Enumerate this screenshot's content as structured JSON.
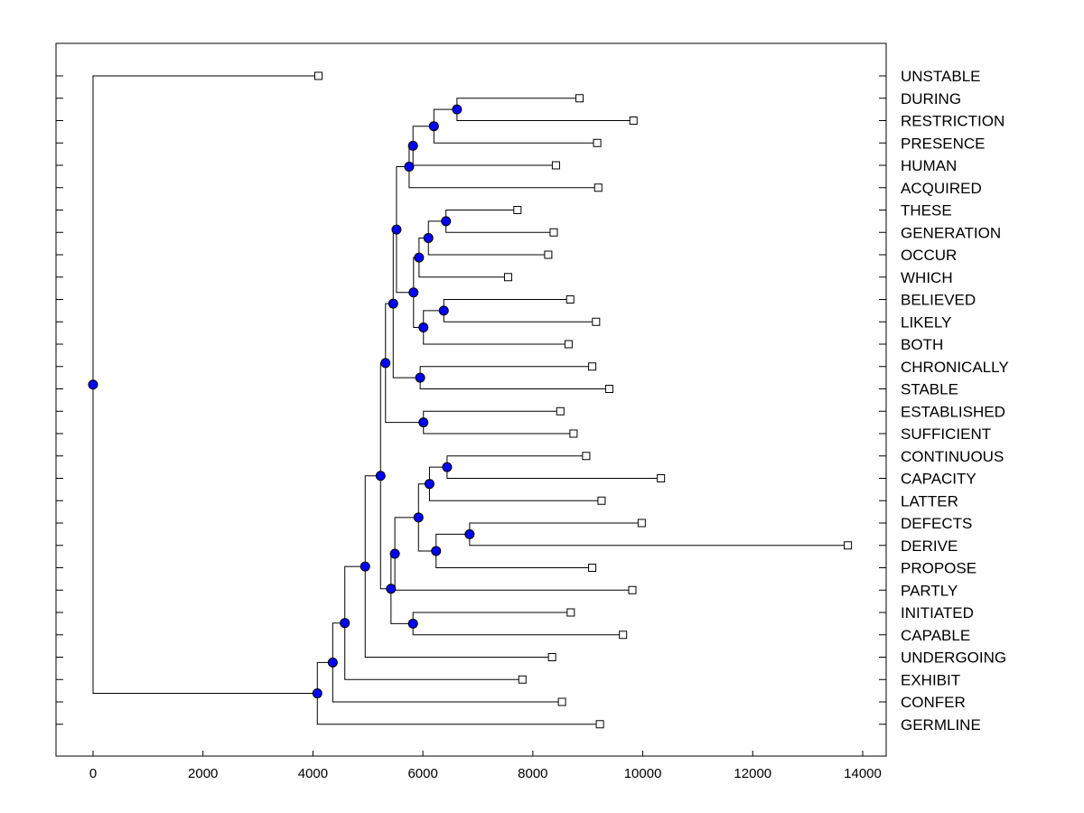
{
  "chart_data": {
    "type": "dendrogram",
    "orientation": "horizontal",
    "x_ticks": [
      0,
      2000,
      4000,
      6000,
      8000,
      10000,
      12000,
      14000
    ],
    "xlim": [
      -700,
      14400
    ],
    "leaf_order": [
      "UNSTABLE",
      "DURING",
      "RESTRICTION",
      "PRESENCE",
      "HUMAN",
      "ACQUIRED",
      "THESE",
      "GENERATION",
      "OCCUR",
      "WHICH",
      "BELIEVED",
      "LIKELY",
      "BOTH",
      "CHRONICALLY",
      "STABLE",
      "ESTABLISHED",
      "SUFFICIENT",
      "CONTINUOUS",
      "CAPACITY",
      "LATTER",
      "DEFECTS",
      "DERIVE",
      "PROPOSE",
      "PARTLY",
      "INITIATED",
      "CAPABLE",
      "UNDERGOING",
      "EXHIBIT",
      "CONFER",
      "GERMLINE"
    ],
    "leaf_values": {
      "UNSTABLE": 4100,
      "DURING": 8850,
      "RESTRICTION": 9830,
      "PRESENCE": 9170,
      "HUMAN": 8420,
      "ACQUIRED": 9190,
      "THESE": 7720,
      "GENERATION": 8380,
      "OCCUR": 8280,
      "WHICH": 7550,
      "BELIEVED": 8680,
      "LIKELY": 9150,
      "BOTH": 8650,
      "CHRONICALLY": 9080,
      "STABLE": 9390,
      "ESTABLISHED": 8500,
      "SUFFICIENT": 8740,
      "CONTINUOUS": 8970,
      "CAPACITY": 10330,
      "LATTER": 9250,
      "DEFECTS": 9980,
      "DERIVE": 13730,
      "PROPOSE": 9080,
      "PARTLY": 9810,
      "INITIATED": 8690,
      "CAPABLE": 9640,
      "UNDERGOING": 8350,
      "EXHIBIT": 7810,
      "CONFER": 8530,
      "GERMLINE": 9220
    },
    "merges": [
      {
        "id": "N1",
        "height": 6620,
        "children": [
          "DURING",
          "RESTRICTION"
        ]
      },
      {
        "id": "N2",
        "height": 6200,
        "children": [
          "N1",
          "PRESENCE"
        ]
      },
      {
        "id": "N3",
        "height": 5820,
        "children": [
          "N2",
          "HUMAN"
        ]
      },
      {
        "id": "N4",
        "height": 5750,
        "children": [
          "N3",
          "ACQUIRED"
        ]
      },
      {
        "id": "N5",
        "height": 6420,
        "children": [
          "THESE",
          "GENERATION"
        ]
      },
      {
        "id": "N6",
        "height": 6100,
        "children": [
          "N5",
          "OCCUR"
        ]
      },
      {
        "id": "N7",
        "height": 5930,
        "children": [
          "N6",
          "WHICH"
        ]
      },
      {
        "id": "N8",
        "height": 6380,
        "children": [
          "BELIEVED",
          "LIKELY"
        ]
      },
      {
        "id": "N9",
        "height": 6010,
        "children": [
          "N8",
          "BOTH"
        ]
      },
      {
        "id": "N10",
        "height": 5830,
        "children": [
          "N7",
          "N9"
        ]
      },
      {
        "id": "N11",
        "height": 5520,
        "children": [
          "N4",
          "N10"
        ]
      },
      {
        "id": "N12",
        "height": 5950,
        "children": [
          "CHRONICALLY",
          "STABLE"
        ]
      },
      {
        "id": "N13",
        "height": 5460,
        "children": [
          "N11",
          "N12"
        ]
      },
      {
        "id": "N14",
        "height": 6010,
        "children": [
          "ESTABLISHED",
          "SUFFICIENT"
        ]
      },
      {
        "id": "N15",
        "height": 5320,
        "children": [
          "N13",
          "N14"
        ]
      },
      {
        "id": "N16",
        "height": 6440,
        "children": [
          "CONTINUOUS",
          "CAPACITY"
        ]
      },
      {
        "id": "N17",
        "height": 6120,
        "children": [
          "N16",
          "LATTER"
        ]
      },
      {
        "id": "N18",
        "height": 6850,
        "children": [
          "DEFECTS",
          "DERIVE"
        ]
      },
      {
        "id": "N19",
        "height": 6240,
        "children": [
          "N18",
          "PROPOSE"
        ]
      },
      {
        "id": "N20",
        "height": 5920,
        "children": [
          "N17",
          "N19"
        ]
      },
      {
        "id": "N21",
        "height": 5490,
        "children": [
          "N20",
          "PARTLY"
        ]
      },
      {
        "id": "N22",
        "height": 5820,
        "children": [
          "INITIATED",
          "CAPABLE"
        ]
      },
      {
        "id": "N23",
        "height": 5420,
        "children": [
          "N21",
          "N22"
        ]
      },
      {
        "id": "N24",
        "height": 5230,
        "children": [
          "N15",
          "N23"
        ]
      },
      {
        "id": "N25",
        "height": 4950,
        "children": [
          "N24",
          "UNDERGOING"
        ]
      },
      {
        "id": "N26",
        "height": 4580,
        "children": [
          "N25",
          "EXHIBIT"
        ]
      },
      {
        "id": "N27",
        "height": 4360,
        "children": [
          "N26",
          "CONFER"
        ]
      },
      {
        "id": "N28",
        "height": 4080,
        "children": [
          "N27",
          "GERMLINE"
        ]
      },
      {
        "id": "N29",
        "height": 0,
        "children": [
          "UNSTABLE",
          "N28"
        ]
      }
    ]
  },
  "colors": {
    "node_fill": "#0000ff",
    "line": "#000000",
    "leaf_marker_fill": "#ffffff"
  }
}
